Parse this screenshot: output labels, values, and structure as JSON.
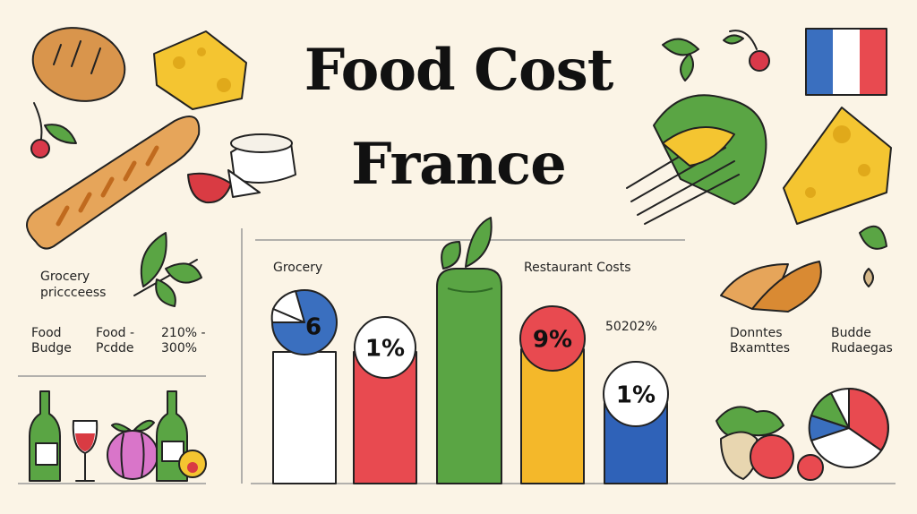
{
  "title": {
    "line1": "Food Cost",
    "line2": "France"
  },
  "left_panel": {
    "heading": [
      "Grocery",
      "priccceess"
    ],
    "col1": [
      "Food",
      "Budge"
    ],
    "col2": [
      "Food -",
      "Pcdde"
    ],
    "col3": [
      "210% -",
      "300%"
    ]
  },
  "center_panel": {
    "left_label": "Grocery",
    "right_label": "Restaurant Costs",
    "side_value": "50202%",
    "bubbles": [
      "6",
      "1%",
      "9%",
      "1%"
    ]
  },
  "right_panel": {
    "col1": [
      "Donntes",
      "Bxamttes"
    ],
    "col2": [
      "Budde",
      "Rudaegas"
    ]
  }
}
